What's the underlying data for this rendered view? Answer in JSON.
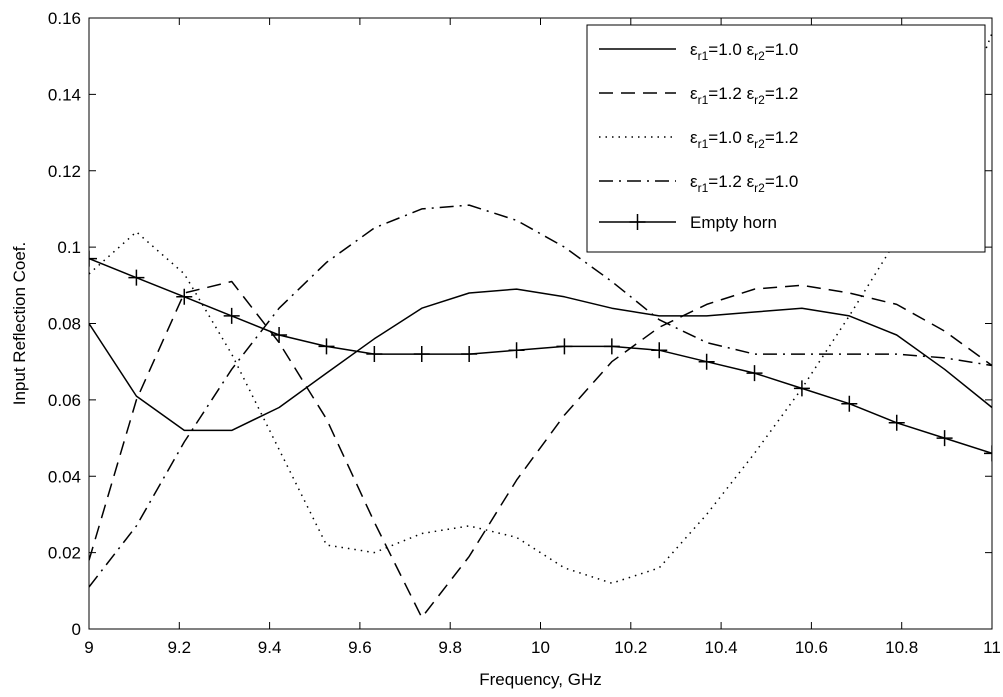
{
  "chart_data": {
    "type": "line",
    "title": "",
    "xlabel": "Frequency, GHz",
    "ylabel": "Input Reflection Coef.",
    "xlim": [
      9,
      11
    ],
    "ylim": [
      0,
      0.16
    ],
    "xticks": [
      9,
      9.2,
      9.4,
      9.6,
      9.8,
      10,
      10.2,
      10.4,
      10.6,
      10.8,
      11
    ],
    "xtick_labels": [
      "9",
      "9.2",
      "9.4",
      "9.6",
      "9.8",
      "10",
      "10.2",
      "10.4",
      "10.6",
      "10.8",
      "11"
    ],
    "yticks": [
      0,
      0.02,
      0.04,
      0.06,
      0.08,
      0.1,
      0.12,
      0.14,
      0.16
    ],
    "ytick_labels": [
      "0",
      "0.02",
      "0.04",
      "0.06",
      "0.08",
      "0.1",
      "0.12",
      "0.14",
      "0.16"
    ],
    "grid": false,
    "legend_position": "top-right",
    "line_color": "#000000",
    "series": [
      {
        "label": {
          "e1": "ε",
          "s1": "r1",
          "v1": "=1.0 ",
          "e2": "ε",
          "s2": "r2",
          "v2": "=1.0"
        },
        "style": "solid",
        "markers": false,
        "x": [
          9.0,
          9.105,
          9.211,
          9.316,
          9.421,
          9.526,
          9.632,
          9.737,
          9.842,
          9.947,
          10.053,
          10.158,
          10.263,
          10.368,
          10.474,
          10.579,
          10.684,
          10.789,
          10.895,
          11.0
        ],
        "y": [
          0.08,
          0.061,
          0.052,
          0.052,
          0.058,
          0.067,
          0.076,
          0.084,
          0.088,
          0.089,
          0.087,
          0.084,
          0.082,
          0.082,
          0.083,
          0.084,
          0.082,
          0.077,
          0.068,
          0.058
        ]
      },
      {
        "label": {
          "e1": "ε",
          "s1": "r1",
          "v1": "=1.2 ",
          "e2": "ε",
          "s2": "r2",
          "v2": "=1.2"
        },
        "style": "dashed",
        "markers": false,
        "x": [
          9.0,
          9.105,
          9.211,
          9.316,
          9.421,
          9.526,
          9.632,
          9.737,
          9.842,
          9.947,
          10.053,
          10.158,
          10.263,
          10.368,
          10.474,
          10.579,
          10.684,
          10.789,
          10.895,
          11.0
        ],
        "y": [
          0.018,
          0.06,
          0.088,
          0.091,
          0.075,
          0.055,
          0.028,
          0.003,
          0.019,
          0.039,
          0.056,
          0.07,
          0.079,
          0.085,
          0.089,
          0.09,
          0.088,
          0.085,
          0.078,
          0.069
        ]
      },
      {
        "label": {
          "e1": "ε",
          "s1": "r1",
          "v1": "=1.0 ",
          "e2": "ε",
          "s2": "r2",
          "v2": "=1.2"
        },
        "style": "dotted",
        "markers": false,
        "x": [
          9.0,
          9.105,
          9.211,
          9.316,
          9.421,
          9.526,
          9.632,
          9.737,
          9.842,
          9.947,
          10.053,
          10.158,
          10.263,
          10.368,
          10.474,
          10.579,
          10.684,
          10.789,
          10.895,
          11.0
        ],
        "y": [
          0.093,
          0.104,
          0.093,
          0.072,
          0.047,
          0.022,
          0.02,
          0.025,
          0.027,
          0.024,
          0.016,
          0.012,
          0.016,
          0.03,
          0.046,
          0.063,
          0.082,
          0.102,
          0.124,
          0.156
        ]
      },
      {
        "label": {
          "e1": "ε",
          "s1": "r1",
          "v1": "=1.2 ",
          "e2": "ε",
          "s2": "r2",
          "v2": "=1.0"
        },
        "style": "dashdot",
        "markers": false,
        "x": [
          9.0,
          9.105,
          9.211,
          9.316,
          9.421,
          9.526,
          9.632,
          9.737,
          9.842,
          9.947,
          10.053,
          10.158,
          10.263,
          10.368,
          10.474,
          10.579,
          10.684,
          10.789,
          10.895,
          11.0
        ],
        "y": [
          0.011,
          0.027,
          0.049,
          0.068,
          0.084,
          0.096,
          0.105,
          0.11,
          0.111,
          0.107,
          0.1,
          0.091,
          0.081,
          0.075,
          0.072,
          0.072,
          0.072,
          0.072,
          0.071,
          0.069
        ]
      },
      {
        "label": {
          "text": "Empty horn"
        },
        "style": "solid",
        "markers": true,
        "x": [
          9.0,
          9.105,
          9.211,
          9.316,
          9.421,
          9.526,
          9.632,
          9.737,
          9.842,
          9.947,
          10.053,
          10.158,
          10.263,
          10.368,
          10.474,
          10.579,
          10.684,
          10.789,
          10.895,
          11.0
        ],
        "y": [
          0.097,
          0.092,
          0.087,
          0.082,
          0.077,
          0.074,
          0.072,
          0.072,
          0.072,
          0.073,
          0.074,
          0.074,
          0.073,
          0.07,
          0.067,
          0.063,
          0.059,
          0.054,
          0.05,
          0.046
        ]
      }
    ]
  }
}
